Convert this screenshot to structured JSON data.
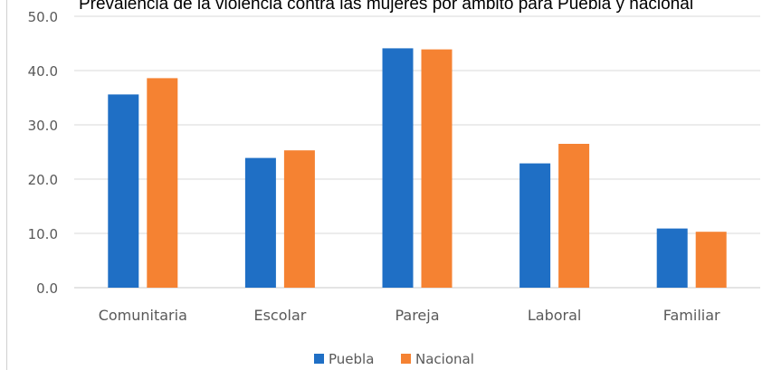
{
  "chart_data": {
    "type": "bar",
    "title": "Prevalencia de la violencia contra las mujeres por ámbito para Puebla y nacional",
    "categories": [
      "Comunitaria",
      "Escolar",
      "Pareja",
      "Laboral",
      "Familiar"
    ],
    "series": [
      {
        "name": "Puebla",
        "values": [
          35.6,
          23.9,
          44.1,
          22.9,
          10.9
        ],
        "color": "#1f6fc5"
      },
      {
        "name": "Nacional",
        "values": [
          38.6,
          25.3,
          43.9,
          26.5,
          10.3
        ],
        "color": "#f58232"
      }
    ],
    "yticks": [
      "0.0",
      "10.0",
      "20.0",
      "30.0",
      "40.0",
      "50.0"
    ],
    "ylim": [
      0,
      50
    ],
    "grid": true,
    "legend": "bottom-center"
  }
}
